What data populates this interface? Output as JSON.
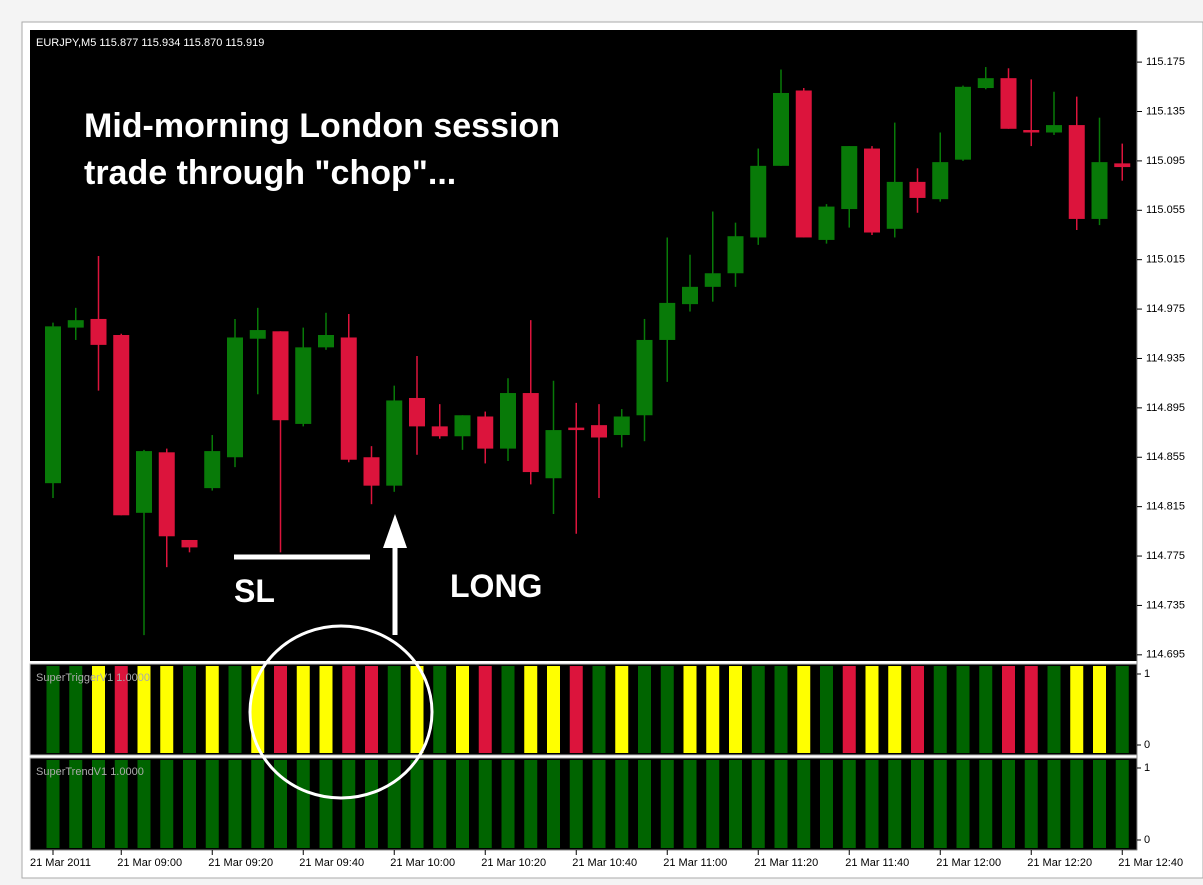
{
  "chart_data": [
    {
      "type": "candlestick",
      "header": "EURJPY,M5  115.877 115.934 115.870 115.919",
      "annotations": [
        "Mid-morning London session",
        "trade through \"chop\"...",
        "SL",
        "LONG"
      ],
      "categories": [
        "21 Mar 2011",
        null,
        null,
        "21 Mar 09:00",
        null,
        null,
        null,
        "21 Mar 09:20",
        null,
        null,
        null,
        "21 Mar 09:40",
        null,
        null,
        null,
        "21 Mar 10:00",
        null,
        null,
        null,
        "21 Mar 10:20",
        null,
        null,
        null,
        "21 Mar 10:40",
        null,
        null,
        null,
        "21 Mar 11:00",
        null,
        null,
        null,
        "21 Mar 11:20",
        null,
        null,
        null,
        "21 Mar 11:40",
        null,
        null,
        null,
        "21 Mar 12:00",
        null,
        null,
        null,
        "21 Mar 12:20",
        null,
        null,
        null,
        "21 Mar 12:40"
      ],
      "open": [
        114.834,
        114.96,
        114.967,
        114.954,
        114.81,
        114.859,
        114.788,
        114.83,
        114.855,
        114.951,
        114.957,
        114.882,
        114.944,
        114.952,
        114.855,
        114.832,
        114.903,
        114.88,
        114.872,
        114.888,
        114.862,
        114.907,
        114.838,
        114.879,
        114.881,
        114.873,
        114.889,
        114.95,
        114.979,
        114.993,
        115.004,
        115.033,
        115.091,
        115.152,
        115.031,
        115.056,
        115.105,
        115.04,
        115.078,
        115.064,
        115.096,
        115.154,
        115.162,
        115.12,
        115.118,
        115.124,
        115.048,
        115.093
      ],
      "high": [
        114.964,
        114.976,
        115.018,
        114.955,
        114.861,
        114.862,
        114.788,
        114.873,
        114.967,
        114.976,
        114.957,
        114.96,
        114.972,
        114.971,
        114.864,
        114.913,
        114.937,
        114.898,
        114.889,
        114.892,
        114.919,
        114.966,
        114.917,
        114.899,
        114.898,
        114.894,
        114.967,
        115.033,
        115.019,
        115.054,
        115.045,
        115.105,
        115.169,
        115.154,
        115.06,
        115.107,
        115.107,
        115.126,
        115.089,
        115.118,
        115.156,
        115.171,
        115.17,
        115.161,
        115.151,
        115.147,
        115.13,
        115.109
      ],
      "low": [
        114.822,
        114.95,
        114.909,
        114.808,
        114.711,
        114.766,
        114.778,
        114.828,
        114.847,
        114.906,
        114.778,
        114.88,
        114.942,
        114.851,
        114.817,
        114.827,
        114.857,
        114.87,
        114.861,
        114.85,
        114.852,
        114.833,
        114.809,
        114.793,
        114.822,
        114.863,
        114.868,
        114.916,
        114.973,
        114.981,
        114.993,
        115.027,
        115.091,
        115.033,
        115.028,
        115.041,
        115.035,
        115.033,
        115.053,
        115.062,
        115.095,
        115.153,
        115.121,
        115.107,
        115.116,
        115.039,
        115.043,
        115.079
      ],
      "close": [
        114.961,
        114.966,
        114.946,
        114.808,
        114.86,
        114.791,
        114.782,
        114.86,
        114.952,
        114.958,
        114.885,
        114.944,
        114.954,
        114.853,
        114.832,
        114.901,
        114.88,
        114.872,
        114.889,
        114.862,
        114.907,
        114.843,
        114.877,
        114.877,
        114.871,
        114.888,
        114.95,
        114.98,
        114.993,
        115.004,
        115.034,
        115.091,
        115.15,
        115.033,
        115.058,
        115.107,
        115.037,
        115.078,
        115.065,
        115.094,
        115.155,
        115.162,
        115.121,
        115.118,
        115.124,
        115.048,
        115.094,
        115.09
      ],
      "up_color": "#087a08",
      "down_color": "#dc143c",
      "ylim": [
        114.69,
        115.201
      ],
      "yticks": [
        115.175,
        115.135,
        115.095,
        115.055,
        115.015,
        114.975,
        114.935,
        114.895,
        114.855,
        114.815,
        114.775,
        114.735,
        114.695
      ]
    },
    {
      "type": "bar",
      "title": "SuperTriggerV1 1.0000",
      "values": [
        1,
        1,
        1,
        1,
        1,
        1,
        1,
        1,
        1,
        1,
        1,
        1,
        1,
        1,
        1,
        1,
        1,
        1,
        1,
        1,
        1,
        1,
        1,
        1,
        1,
        1,
        1,
        1,
        1,
        1,
        1,
        1,
        1,
        1,
        1,
        1,
        1,
        1,
        1,
        1,
        1,
        1,
        1,
        1,
        1,
        1,
        1,
        1
      ],
      "colors": [
        "#006400",
        "#006400",
        "#ffff00",
        "#dc143c",
        "#ffff00",
        "#ffff00",
        "#006400",
        "#ffff00",
        "#006400",
        "#ffff00",
        "#dc143c",
        "#ffff00",
        "#ffff00",
        "#dc143c",
        "#dc143c",
        "#006400",
        "#ffff00",
        "#006400",
        "#ffff00",
        "#dc143c",
        "#006400",
        "#ffff00",
        "#ffff00",
        "#dc143c",
        "#006400",
        "#ffff00",
        "#006400",
        "#006400",
        "#ffff00",
        "#ffff00",
        "#ffff00",
        "#006400",
        "#006400",
        "#ffff00",
        "#006400",
        "#dc143c",
        "#ffff00",
        "#ffff00",
        "#dc143c",
        "#006400",
        "#006400",
        "#006400",
        "#dc143c",
        "#dc143c",
        "#006400",
        "#ffff00",
        "#ffff00",
        "#006400"
      ],
      "ylim": [
        0,
        1
      ],
      "yticks": [
        1,
        0
      ]
    },
    {
      "type": "bar",
      "title": "SuperTrendV1 1.0000",
      "values": [
        1,
        1,
        1,
        1,
        1,
        1,
        1,
        1,
        1,
        1,
        1,
        1,
        1,
        1,
        1,
        1,
        1,
        1,
        1,
        1,
        1,
        1,
        1,
        1,
        1,
        1,
        1,
        1,
        1,
        1,
        1,
        1,
        1,
        1,
        1,
        1,
        1,
        1,
        1,
        1,
        1,
        1,
        1,
        1,
        1,
        1,
        1,
        1
      ],
      "color": "#006400",
      "ylim": [
        0,
        1
      ],
      "yticks": [
        1,
        0
      ]
    }
  ]
}
